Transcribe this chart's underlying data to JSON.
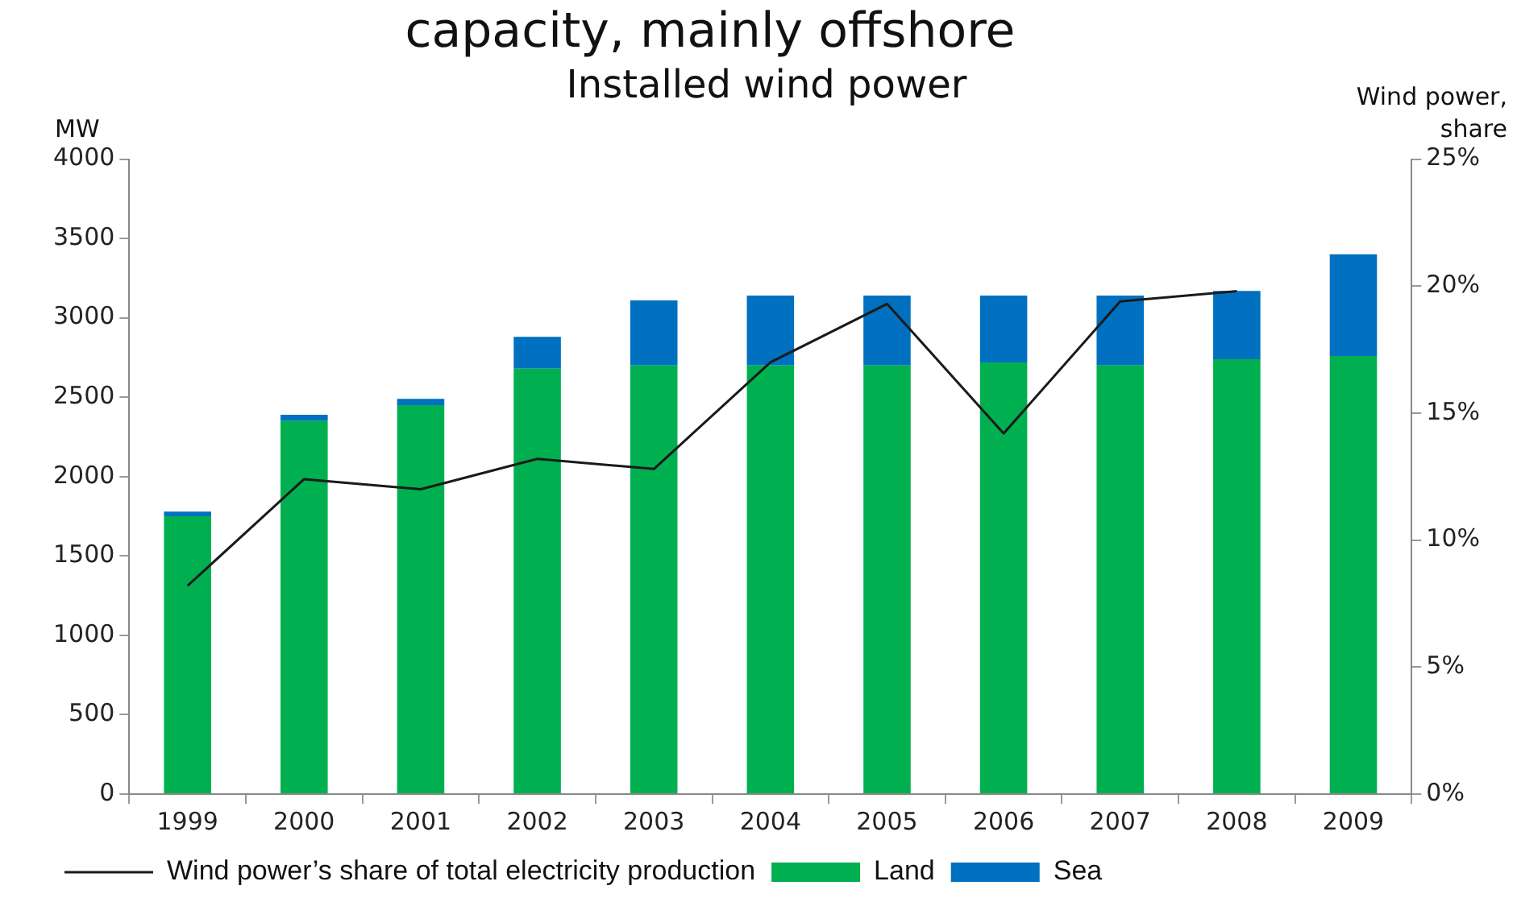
{
  "chart_data": {
    "type": "bar",
    "title": "capacity, mainly offshore",
    "subtitle": "Installed wind power",
    "ylabel": "MW",
    "y2label": "Wind power, share",
    "categories": [
      "1999",
      "2000",
      "2001",
      "2002",
      "2003",
      "2004",
      "2005",
      "2006",
      "2007",
      "2008",
      "2009"
    ],
    "stacked": true,
    "series": [
      {
        "name": "Land",
        "color": "#00b050",
        "values": [
          1750,
          2350,
          2450,
          2680,
          2700,
          2700,
          2700,
          2720,
          2700,
          2740,
          2760
        ]
      },
      {
        "name": "Sea",
        "color": "#0070c0",
        "values": [
          30,
          40,
          40,
          200,
          410,
          440,
          440,
          420,
          440,
          430,
          640
        ]
      },
      {
        "name": "Wind power’s share of total electricity production",
        "type": "line",
        "axis": "y2",
        "color": "#1a1a1a",
        "values": [
          8.2,
          12.4,
          12.0,
          13.2,
          12.8,
          17.0,
          19.3,
          14.2,
          19.4,
          19.8,
          null
        ]
      }
    ],
    "ylim": [
      0,
      4000
    ],
    "yticks": [
      0,
      500,
      1000,
      1500,
      2000,
      2500,
      3000,
      3500,
      4000
    ],
    "y2lim": [
      0,
      25
    ],
    "y2ticks": [
      {
        "value": 0,
        "label": "0%"
      },
      {
        "value": 5,
        "label": "5%"
      },
      {
        "value": 10,
        "label": "10%"
      },
      {
        "value": 15,
        "label": "15%"
      },
      {
        "value": 20,
        "label": "20%"
      },
      {
        "value": 25,
        "label": "25%"
      }
    ],
    "grid": false,
    "legend": "bottom",
    "marker": "none"
  }
}
